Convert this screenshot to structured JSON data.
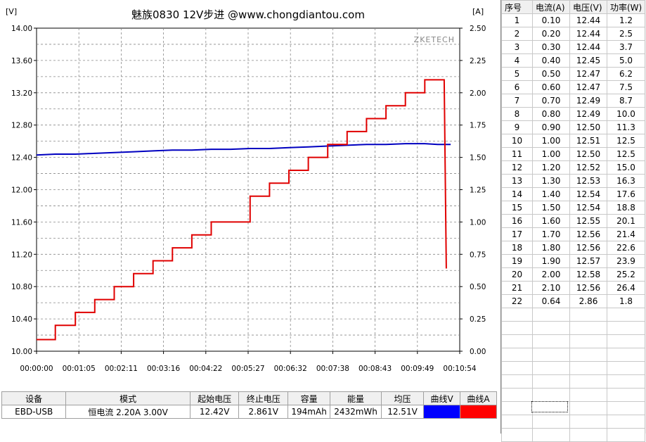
{
  "chart_data": {
    "type": "line",
    "title": "魅族0830  12V步进  @www.chongdiantou.com",
    "watermark": "ZKETECH",
    "left_axis_unit": "[V]",
    "right_axis_unit": "[A]",
    "grid": true,
    "y_left": {
      "range": [
        10.0,
        14.0
      ],
      "ticks": [
        "10.00",
        "10.40",
        "10.80",
        "11.20",
        "11.60",
        "12.00",
        "12.40",
        "12.80",
        "13.20",
        "13.60",
        "14.00"
      ]
    },
    "y_right": {
      "range": [
        0.0,
        2.5
      ],
      "ticks": [
        "0.00",
        "0.25",
        "0.50",
        "0.75",
        "1.00",
        "1.25",
        "1.50",
        "1.75",
        "2.00",
        "2.25",
        "2.50"
      ]
    },
    "x_axis": {
      "range_seconds": [
        0,
        654
      ],
      "ticks": [
        "00:00:00",
        "00:01:05",
        "00:02:11",
        "00:03:16",
        "00:04:22",
        "00:05:27",
        "00:06:32",
        "00:07:38",
        "00:08:43",
        "00:09:49",
        "00:10:54"
      ]
    },
    "series": [
      {
        "name": "曲线V",
        "color": "#0000c0",
        "axis": "left",
        "points_seconds": [
          [
            0,
            12.43
          ],
          [
            29,
            12.44
          ],
          [
            60,
            12.44
          ],
          [
            90,
            12.45
          ],
          [
            120,
            12.46
          ],
          [
            150,
            12.47
          ],
          [
            180,
            12.48
          ],
          [
            210,
            12.49
          ],
          [
            240,
            12.49
          ],
          [
            270,
            12.5
          ],
          [
            300,
            12.5
          ],
          [
            330,
            12.51
          ],
          [
            360,
            12.51
          ],
          [
            390,
            12.52
          ],
          [
            420,
            12.53
          ],
          [
            450,
            12.54
          ],
          [
            480,
            12.55
          ],
          [
            510,
            12.56
          ],
          [
            540,
            12.56
          ],
          [
            570,
            12.57
          ],
          [
            600,
            12.57
          ],
          [
            620,
            12.56
          ],
          [
            640,
            12.56
          ]
        ]
      },
      {
        "name": "曲线A",
        "color": "#e00000",
        "axis": "right",
        "steps": [
          {
            "t0": 0,
            "t1": 29,
            "a": 0.09
          },
          {
            "t0": 29,
            "t1": 60,
            "a": 0.2
          },
          {
            "t0": 60,
            "t1": 90,
            "a": 0.3
          },
          {
            "t0": 90,
            "t1": 120,
            "a": 0.4
          },
          {
            "t0": 120,
            "t1": 150,
            "a": 0.5
          },
          {
            "t0": 150,
            "t1": 180,
            "a": 0.6
          },
          {
            "t0": 180,
            "t1": 210,
            "a": 0.7
          },
          {
            "t0": 210,
            "t1": 240,
            "a": 0.8
          },
          {
            "t0": 240,
            "t1": 270,
            "a": 0.9
          },
          {
            "t0": 270,
            "t1": 300,
            "a": 1.0
          },
          {
            "t0": 300,
            "t1": 330,
            "a": 1.0
          },
          {
            "t0": 330,
            "t1": 360,
            "a": 1.2
          },
          {
            "t0": 360,
            "t1": 390,
            "a": 1.3
          },
          {
            "t0": 390,
            "t1": 420,
            "a": 1.4
          },
          {
            "t0": 420,
            "t1": 450,
            "a": 1.5
          },
          {
            "t0": 450,
            "t1": 480,
            "a": 1.6
          },
          {
            "t0": 480,
            "t1": 510,
            "a": 1.7
          },
          {
            "t0": 510,
            "t1": 540,
            "a": 1.8
          },
          {
            "t0": 540,
            "t1": 570,
            "a": 1.9
          },
          {
            "t0": 570,
            "t1": 600,
            "a": 2.0
          },
          {
            "t0": 600,
            "t1": 630,
            "a": 2.1
          }
        ],
        "end_drop_a": 0.64
      }
    ]
  },
  "summary": {
    "headers": [
      "设备",
      "模式",
      "起始电压",
      "终止电压",
      "容量",
      "能量",
      "均压",
      "曲线V",
      "曲线A"
    ],
    "row": {
      "device": "EBD-USB",
      "mode": "恒电流  2.20A  3.00V",
      "start_v": "12.42V",
      "end_v": "2.861V",
      "capacity": "194mAh",
      "energy": "2432mWh",
      "avg_v": "12.51V",
      "curve_v_color": "#0000ff",
      "curve_a_color": "#ff0000"
    }
  },
  "steps_table": {
    "headers": [
      "序号",
      "电流(A)",
      "电压(V)",
      "功率(W)"
    ],
    "rows": [
      [
        "1",
        "0.10",
        "12.44",
        "1.2"
      ],
      [
        "2",
        "0.20",
        "12.44",
        "2.5"
      ],
      [
        "3",
        "0.30",
        "12.44",
        "3.7"
      ],
      [
        "4",
        "0.40",
        "12.45",
        "5.0"
      ],
      [
        "5",
        "0.50",
        "12.47",
        "6.2"
      ],
      [
        "6",
        "0.60",
        "12.47",
        "7.5"
      ],
      [
        "7",
        "0.70",
        "12.49",
        "8.7"
      ],
      [
        "8",
        "0.80",
        "12.49",
        "10.0"
      ],
      [
        "9",
        "0.90",
        "12.50",
        "11.3"
      ],
      [
        "10",
        "1.00",
        "12.51",
        "12.5"
      ],
      [
        "11",
        "1.00",
        "12.50",
        "12.5"
      ],
      [
        "12",
        "1.20",
        "12.52",
        "15.0"
      ],
      [
        "13",
        "1.30",
        "12.53",
        "16.3"
      ],
      [
        "14",
        "1.40",
        "12.54",
        "17.6"
      ],
      [
        "15",
        "1.50",
        "12.54",
        "18.8"
      ],
      [
        "16",
        "1.60",
        "12.55",
        "20.1"
      ],
      [
        "17",
        "1.70",
        "12.56",
        "21.4"
      ],
      [
        "18",
        "1.80",
        "12.56",
        "22.6"
      ],
      [
        "19",
        "1.90",
        "12.57",
        "23.9"
      ],
      [
        "20",
        "2.00",
        "12.58",
        "25.2"
      ],
      [
        "21",
        "2.10",
        "12.56",
        "26.4"
      ],
      [
        "22",
        "0.64",
        "2.86",
        "1.8"
      ]
    ],
    "empty_rows": 10
  }
}
